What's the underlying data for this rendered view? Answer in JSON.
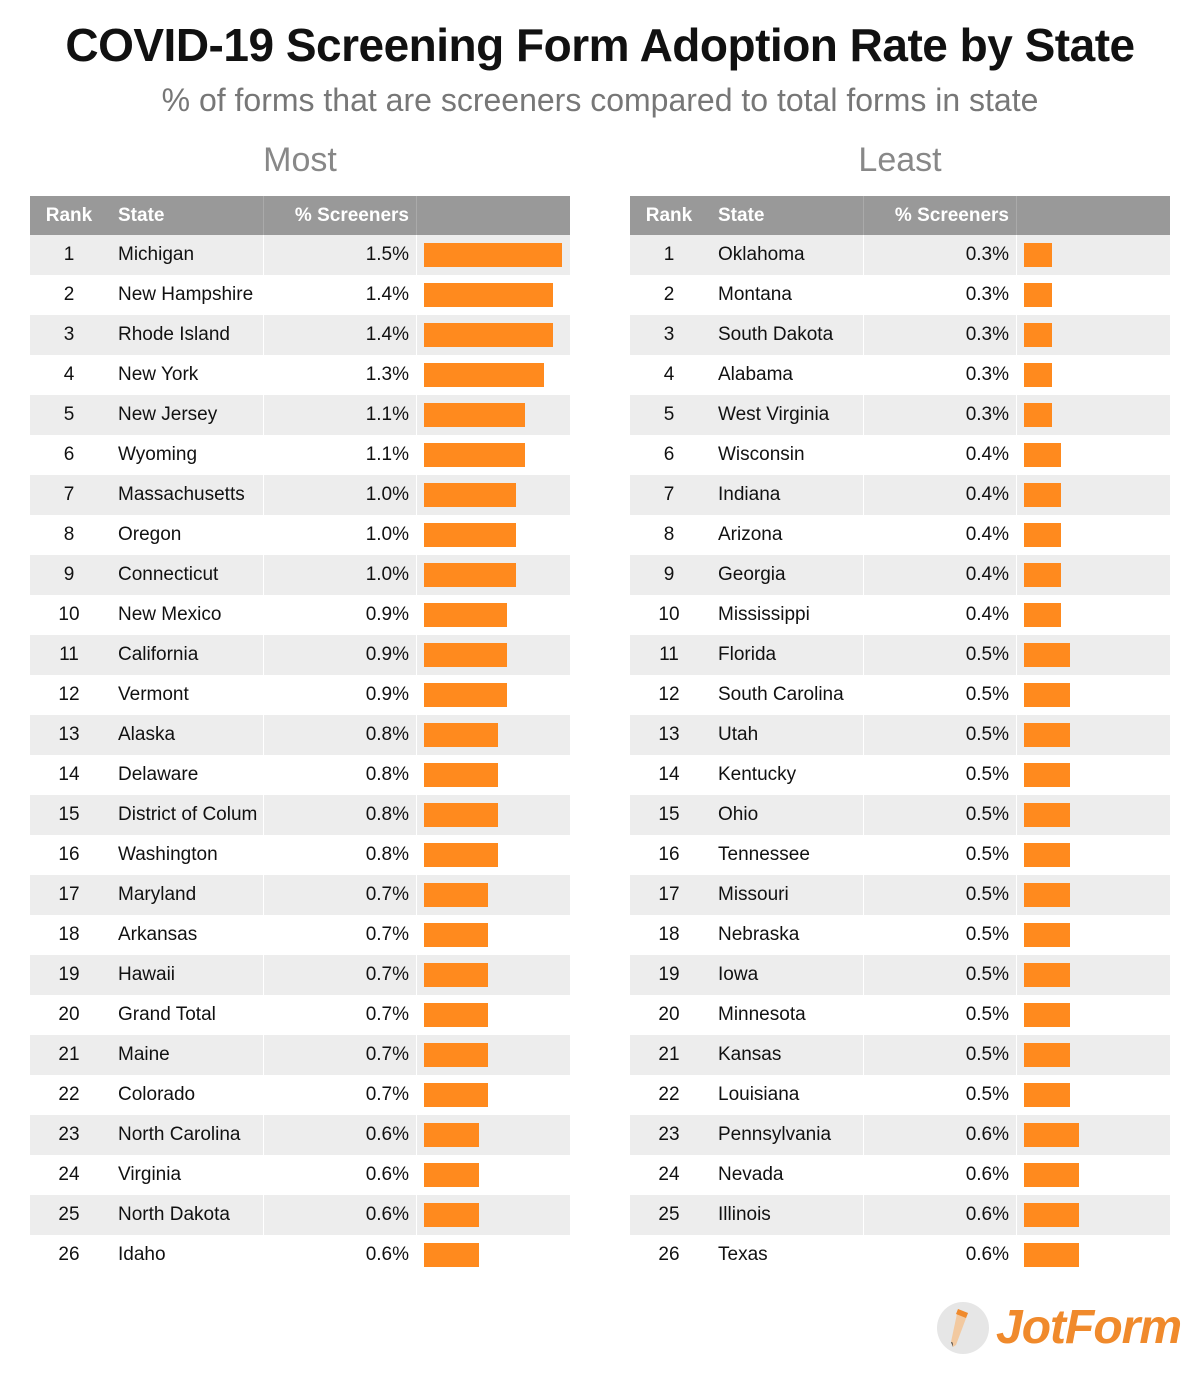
{
  "title": "COVID-19 Screening Form Adoption Rate by State",
  "subtitle": "% of forms that are screeners compared to total forms in state",
  "headers": {
    "rank": "Rank",
    "state": "State",
    "pct": "% Screeners"
  },
  "colors": {
    "bar": "#ff8a1e",
    "header": "#999999"
  },
  "logo": "JotForm",
  "chart_data": [
    {
      "type": "table",
      "title": "Most",
      "unit": "%",
      "max": 1.5,
      "rows": [
        {
          "rank": "1",
          "state": "Michigan",
          "value": 1.5,
          "label": "1.5%"
        },
        {
          "rank": "2",
          "state": "New Hampshire",
          "value": 1.4,
          "label": "1.4%"
        },
        {
          "rank": "3",
          "state": "Rhode Island",
          "value": 1.4,
          "label": "1.4%"
        },
        {
          "rank": "4",
          "state": "New York",
          "value": 1.3,
          "label": "1.3%"
        },
        {
          "rank": "5",
          "state": "New Jersey",
          "value": 1.1,
          "label": "1.1%"
        },
        {
          "rank": "6",
          "state": "Wyoming",
          "value": 1.1,
          "label": "1.1%"
        },
        {
          "rank": "7",
          "state": "Massachusetts",
          "value": 1.0,
          "label": "1.0%"
        },
        {
          "rank": "8",
          "state": "Oregon",
          "value": 1.0,
          "label": "1.0%"
        },
        {
          "rank": "9",
          "state": "Connecticut",
          "value": 1.0,
          "label": "1.0%"
        },
        {
          "rank": "10",
          "state": "New Mexico",
          "value": 0.9,
          "label": "0.9%"
        },
        {
          "rank": "11",
          "state": "California",
          "value": 0.9,
          "label": "0.9%"
        },
        {
          "rank": "12",
          "state": "Vermont",
          "value": 0.9,
          "label": "0.9%"
        },
        {
          "rank": "13",
          "state": "Alaska",
          "value": 0.8,
          "label": "0.8%"
        },
        {
          "rank": "14",
          "state": "Delaware",
          "value": 0.8,
          "label": "0.8%"
        },
        {
          "rank": "15",
          "state": "District of Colum",
          "value": 0.8,
          "label": "0.8%"
        },
        {
          "rank": "16",
          "state": "Washington",
          "value": 0.8,
          "label": "0.8%"
        },
        {
          "rank": "17",
          "state": "Maryland",
          "value": 0.7,
          "label": "0.7%"
        },
        {
          "rank": "18",
          "state": "Arkansas",
          "value": 0.7,
          "label": "0.7%"
        },
        {
          "rank": "19",
          "state": "Hawaii",
          "value": 0.7,
          "label": "0.7%"
        },
        {
          "rank": "20",
          "state": "Grand Total",
          "value": 0.7,
          "label": "0.7%"
        },
        {
          "rank": "21",
          "state": "Maine",
          "value": 0.7,
          "label": "0.7%"
        },
        {
          "rank": "22",
          "state": "Colorado",
          "value": 0.7,
          "label": "0.7%"
        },
        {
          "rank": "23",
          "state": "North Carolina",
          "value": 0.6,
          "label": "0.6%"
        },
        {
          "rank": "24",
          "state": "Virginia",
          "value": 0.6,
          "label": "0.6%"
        },
        {
          "rank": "25",
          "state": "North Dakota",
          "value": 0.6,
          "label": "0.6%"
        },
        {
          "rank": "26",
          "state": "Idaho",
          "value": 0.6,
          "label": "0.6%"
        }
      ]
    },
    {
      "type": "table",
      "title": "Least",
      "unit": "%",
      "max": 1.5,
      "rows": [
        {
          "rank": "1",
          "state": "Oklahoma",
          "value": 0.3,
          "label": "0.3%"
        },
        {
          "rank": "2",
          "state": "Montana",
          "value": 0.3,
          "label": "0.3%"
        },
        {
          "rank": "3",
          "state": "South Dakota",
          "value": 0.3,
          "label": "0.3%"
        },
        {
          "rank": "4",
          "state": "Alabama",
          "value": 0.3,
          "label": "0.3%"
        },
        {
          "rank": "5",
          "state": "West Virginia",
          "value": 0.3,
          "label": "0.3%"
        },
        {
          "rank": "6",
          "state": "Wisconsin",
          "value": 0.4,
          "label": "0.4%"
        },
        {
          "rank": "7",
          "state": "Indiana",
          "value": 0.4,
          "label": "0.4%"
        },
        {
          "rank": "8",
          "state": "Arizona",
          "value": 0.4,
          "label": "0.4%"
        },
        {
          "rank": "9",
          "state": "Georgia",
          "value": 0.4,
          "label": "0.4%"
        },
        {
          "rank": "10",
          "state": "Mississippi",
          "value": 0.4,
          "label": "0.4%"
        },
        {
          "rank": "11",
          "state": "Florida",
          "value": 0.5,
          "label": "0.5%"
        },
        {
          "rank": "12",
          "state": "South Carolina",
          "value": 0.5,
          "label": "0.5%"
        },
        {
          "rank": "13",
          "state": "Utah",
          "value": 0.5,
          "label": "0.5%"
        },
        {
          "rank": "14",
          "state": "Kentucky",
          "value": 0.5,
          "label": "0.5%"
        },
        {
          "rank": "15",
          "state": "Ohio",
          "value": 0.5,
          "label": "0.5%"
        },
        {
          "rank": "16",
          "state": "Tennessee",
          "value": 0.5,
          "label": "0.5%"
        },
        {
          "rank": "17",
          "state": "Missouri",
          "value": 0.5,
          "label": "0.5%"
        },
        {
          "rank": "18",
          "state": "Nebraska",
          "value": 0.5,
          "label": "0.5%"
        },
        {
          "rank": "19",
          "state": "Iowa",
          "value": 0.5,
          "label": "0.5%"
        },
        {
          "rank": "20",
          "state": "Minnesota",
          "value": 0.5,
          "label": "0.5%"
        },
        {
          "rank": "21",
          "state": "Kansas",
          "value": 0.5,
          "label": "0.5%"
        },
        {
          "rank": "22",
          "state": "Louisiana",
          "value": 0.5,
          "label": "0.5%"
        },
        {
          "rank": "23",
          "state": "Pennsylvania",
          "value": 0.6,
          "label": "0.6%"
        },
        {
          "rank": "24",
          "state": "Nevada",
          "value": 0.6,
          "label": "0.6%"
        },
        {
          "rank": "25",
          "state": "Illinois",
          "value": 0.6,
          "label": "0.6%"
        },
        {
          "rank": "26",
          "state": "Texas",
          "value": 0.6,
          "label": "0.6%"
        }
      ]
    }
  ]
}
